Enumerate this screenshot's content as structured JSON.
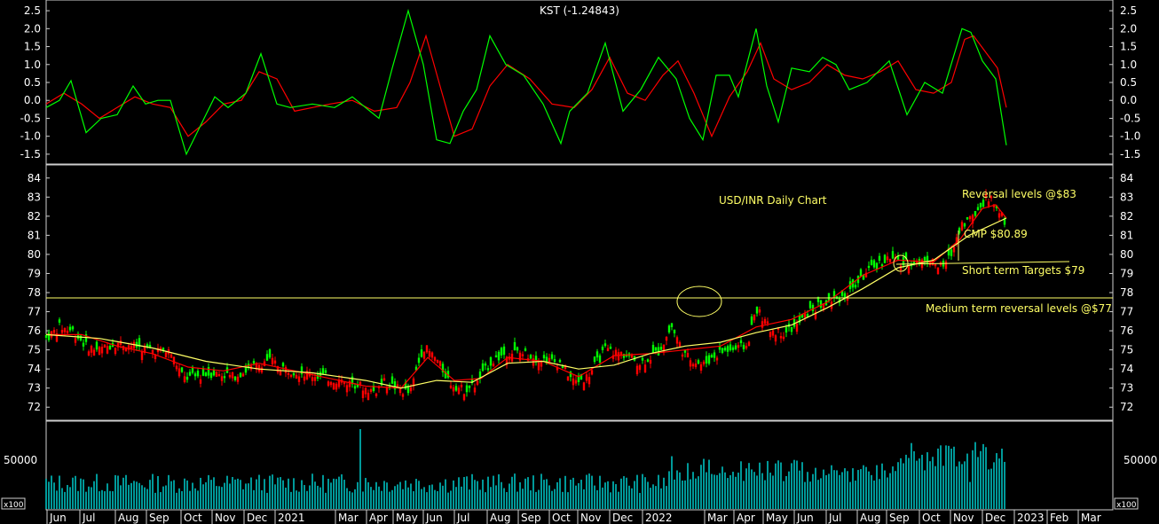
{
  "chart_data": [
    {
      "type": "line",
      "title": "KST (-1.24843)",
      "ylim": [
        -1.7,
        2.7
      ],
      "yticks": [
        "2.5",
        "2.0",
        "1.5",
        "1.0",
        "0.5",
        "0.0",
        "-0.5",
        "-1.0",
        "-1.5"
      ],
      "series": [
        {
          "color": "#00ff00",
          "x": [
            0,
            15,
            28,
            45,
            62,
            80,
            98,
            112,
            126,
            140,
            158,
            172,
            190,
            205,
            225,
            242,
            260,
            275,
            300,
            325,
            345,
            375,
            390,
            408,
            425,
            440,
            455,
            470,
            485,
            500,
            518,
            538,
            560,
            580,
            590,
            610,
            630,
            650,
            670,
            690,
            710,
            725,
            740,
            755,
            770,
            780,
            800,
            812,
            825,
            840,
            860,
            875,
            890,
            905,
            925,
            950,
            970,
            990,
            1010,
            1032,
            1042,
            1055,
            1070,
            1082
          ],
          "values": [
            -0.2,
            0.0,
            0.55,
            -0.9,
            -0.5,
            -0.4,
            0.4,
            -0.1,
            0.0,
            0.0,
            -1.5,
            -0.8,
            0.1,
            -0.2,
            0.2,
            1.3,
            -0.1,
            -0.2,
            -0.1,
            -0.2,
            0.1,
            -0.5,
            0.9,
            2.5,
            1.0,
            -1.1,
            -1.2,
            -0.3,
            0.3,
            1.8,
            1.0,
            0.7,
            -0.1,
            -1.2,
            -0.3,
            0.2,
            1.6,
            -0.3,
            0.3,
            1.2,
            0.6,
            -0.5,
            -1.1,
            0.7,
            0.7,
            0.1,
            2.0,
            0.4,
            -0.6,
            0.9,
            0.8,
            1.2,
            1.0,
            0.3,
            0.5,
            1.1,
            -0.4,
            0.5,
            0.2,
            2.0,
            1.9,
            1.1,
            0.6,
            -1.25
          ]
        },
        {
          "color": "#ff0000",
          "x": [
            0,
            20,
            40,
            60,
            80,
            100,
            120,
            140,
            160,
            180,
            200,
            220,
            240,
            260,
            280,
            300,
            320,
            345,
            370,
            395,
            410,
            428,
            445,
            460,
            480,
            500,
            520,
            545,
            570,
            595,
            615,
            635,
            655,
            675,
            695,
            712,
            730,
            750,
            770,
            790,
            805,
            820,
            840,
            860,
            880,
            900,
            920,
            940,
            960,
            980,
            1000,
            1020,
            1035,
            1045,
            1060,
            1072,
            1082
          ],
          "values": [
            -0.1,
            0.2,
            -0.1,
            -0.5,
            -0.2,
            0.1,
            -0.1,
            -0.2,
            -1.0,
            -0.6,
            -0.1,
            0.0,
            0.8,
            0.6,
            -0.3,
            -0.2,
            -0.1,
            0.0,
            -0.3,
            -0.2,
            0.5,
            1.8,
            0.3,
            -1.0,
            -0.8,
            0.4,
            1.0,
            0.6,
            -0.1,
            -0.2,
            0.3,
            1.2,
            0.2,
            0.0,
            0.7,
            1.1,
            0.2,
            -1.0,
            0.1,
            0.8,
            1.6,
            0.6,
            0.3,
            0.5,
            1.0,
            0.7,
            0.6,
            0.8,
            1.1,
            0.3,
            0.2,
            0.5,
            1.7,
            1.8,
            1.3,
            0.9,
            -0.2
          ]
        }
      ]
    },
    {
      "type": "line",
      "title": "USD/INR Daily Chart",
      "ylim": [
        71.5,
        84.5
      ],
      "yticks": [
        "84",
        "83",
        "82",
        "81",
        "80",
        "79",
        "78",
        "77",
        "76",
        "75",
        "74",
        "73",
        "72"
      ],
      "series": [
        {
          "color": "#00ff00",
          "x": [
            0,
            15,
            30,
            45,
            60,
            80,
            100,
            120,
            140,
            155,
            170,
            190,
            210,
            230,
            250,
            270,
            290,
            310,
            330,
            350,
            370,
            380,
            395,
            410,
            425,
            440,
            455,
            470,
            485,
            500,
            520,
            540,
            560,
            580,
            595,
            610,
            630,
            650,
            670,
            690,
            705,
            720,
            740,
            760,
            775,
            790,
            800,
            815,
            830,
            845,
            860,
            875,
            890,
            905,
            920,
            935,
            950,
            965,
            980,
            995,
            1010,
            1020,
            1030,
            1045,
            1060,
            1070,
            1078,
            1082
          ],
          "values": [
            75.6,
            76.2,
            76.0,
            75.2,
            75.0,
            75.4,
            75.2,
            75.0,
            74.9,
            73.5,
            73.6,
            73.8,
            73.6,
            74.0,
            74.5,
            74.0,
            73.8,
            73.6,
            73.4,
            73.2,
            72.8,
            73.3,
            73.0,
            72.7,
            75.2,
            74.5,
            73.3,
            72.9,
            73.2,
            74.3,
            74.9,
            74.8,
            74.5,
            74.3,
            73.3,
            73.6,
            75.0,
            74.8,
            74.3,
            74.9,
            76.2,
            74.7,
            74.2,
            74.9,
            75.0,
            75.2,
            77.2,
            76.1,
            75.9,
            76.2,
            77.0,
            77.4,
            77.6,
            78.0,
            78.8,
            79.4,
            79.8,
            79.5,
            79.6,
            79.7,
            79.3,
            80.0,
            81.5,
            82.0,
            83.0,
            82.6,
            82.0,
            80.9
          ]
        },
        {
          "color": "#ff0000",
          "x": [
            0,
            40,
            80,
            120,
            160,
            200,
            240,
            280,
            320,
            360,
            400,
            430,
            460,
            490,
            520,
            560,
            600,
            640,
            680,
            720,
            760,
            800,
            840,
            880,
            920,
            960,
            1000,
            1030,
            1055,
            1070,
            1082
          ],
          "values": [
            75.8,
            75.8,
            75.2,
            74.8,
            74.1,
            73.9,
            74.3,
            73.9,
            73.5,
            73.1,
            73.0,
            74.6,
            73.4,
            73.5,
            74.6,
            74.4,
            73.6,
            74.7,
            74.8,
            75.0,
            75.2,
            76.2,
            76.6,
            77.5,
            78.9,
            79.7,
            79.6,
            80.8,
            82.4,
            82.6,
            81.9
          ]
        },
        {
          "color": "#ffff66",
          "x": [
            0,
            60,
            120,
            180,
            240,
            300,
            360,
            400,
            440,
            480,
            520,
            560,
            600,
            640,
            680,
            720,
            760,
            800,
            840,
            880,
            920,
            960,
            1000,
            1040,
            1082
          ],
          "values": [
            75.8,
            75.6,
            75.1,
            74.4,
            74.0,
            73.8,
            73.4,
            73.0,
            73.4,
            73.3,
            74.3,
            74.4,
            74.0,
            74.2,
            74.8,
            75.2,
            75.4,
            75.9,
            76.3,
            77.2,
            78.2,
            79.3,
            79.7,
            81.0,
            81.9
          ]
        }
      ]
    },
    {
      "type": "bar",
      "title": "",
      "ylabel": "x100",
      "yticks": [
        "50000"
      ],
      "series": [
        {
          "color": "#00ffff",
          "name": ""
        }
      ]
    }
  ],
  "annotations": {
    "reversal": "Reversal levels @$83",
    "cmp": "CMP $80.89",
    "short_term": "Short term Targets $79",
    "medium_term": "Medium term reversal levels @$77"
  },
  "x_axis": {
    "labels": [
      "Jun",
      "Jul",
      "Aug",
      "Sep",
      "Oct",
      "Nov",
      "Dec",
      "2021",
      "Mar",
      "Apr",
      "May",
      "Jun",
      "Jul",
      "Aug",
      "Sep",
      "Oct",
      "Nov",
      "Dec",
      "2022",
      "Mar",
      "Apr",
      "May",
      "Jun",
      "Jul",
      "Aug",
      "Sep",
      "Oct",
      "Nov",
      "Dec",
      "2023",
      "Feb",
      "Mar"
    ]
  },
  "volume_unit_left": "x100",
  "volume_unit_right": "x100"
}
